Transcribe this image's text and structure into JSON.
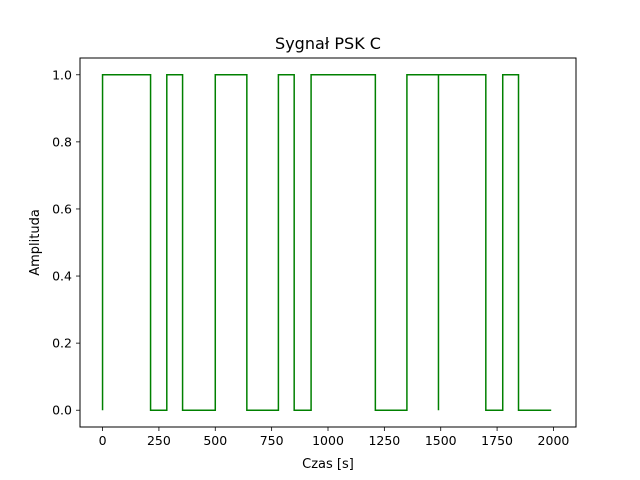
{
  "chart_data": {
    "type": "line",
    "title": "Sygnał PSK C",
    "xlabel": "Czas [s]",
    "ylabel": "Amplituda",
    "xlim": [
      -100,
      2100
    ],
    "ylim": [
      -0.05,
      1.05
    ],
    "x_ticks": [
      0,
      250,
      500,
      750,
      1000,
      1250,
      1500,
      1750,
      2000
    ],
    "x_tick_labels": [
      "0",
      "250",
      "500",
      "750",
      "1000",
      "1250",
      "1500",
      "1750",
      "2000"
    ],
    "y_ticks": [
      0.0,
      0.2,
      0.4,
      0.6,
      0.8,
      1.0
    ],
    "y_tick_labels": [
      "0.0",
      "0.2",
      "0.4",
      "0.6",
      "0.8",
      "1.0"
    ],
    "grid": false,
    "series": [
      {
        "color": "#008000",
        "step": true,
        "x": [
          0,
          0,
          213,
          213,
          285,
          285,
          355,
          355,
          500,
          500,
          640,
          640,
          780,
          780,
          850,
          850,
          925,
          925,
          1210,
          1210,
          1350,
          1350,
          1490,
          1490,
          1490,
          1490,
          1700,
          1700,
          1775,
          1775,
          1845,
          1845,
          1990
        ],
        "y": [
          0,
          1,
          1,
          0,
          0,
          1,
          1,
          0,
          0,
          1,
          1,
          0,
          0,
          1,
          1,
          0,
          0,
          1,
          1,
          0,
          0,
          1,
          1,
          0,
          0,
          1,
          1,
          0,
          0,
          1,
          1,
          0,
          0
        ]
      }
    ]
  }
}
